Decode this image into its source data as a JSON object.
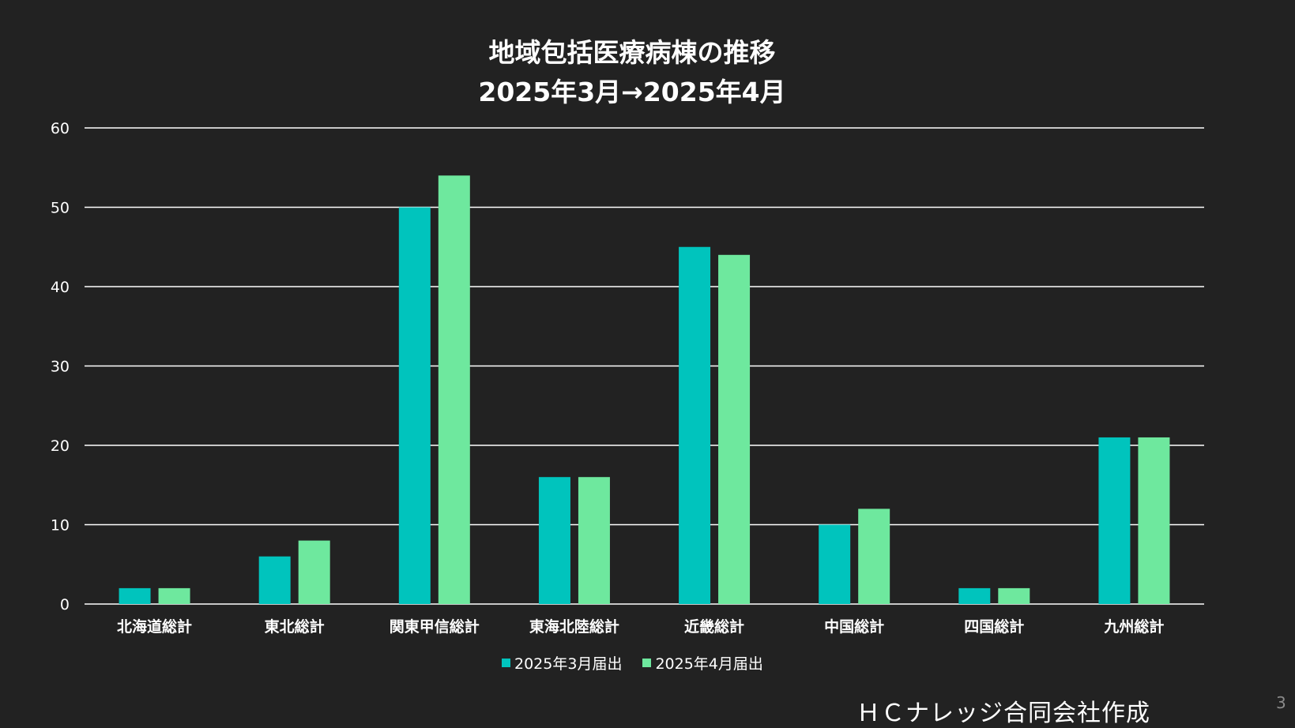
{
  "chart_data": {
    "type": "bar",
    "title": "地域包括医療病棟の推移",
    "subtitle": "2025年3月→2025年4月",
    "categories": [
      "北海道総計",
      "東北総計",
      "関東甲信総計",
      "東海北陸総計",
      "近畿総計",
      "中国総計",
      "四国総計",
      "九州総計"
    ],
    "series": [
      {
        "name": "2025年3月届出",
        "color": "#00c4bd",
        "values": [
          2,
          6,
          50,
          16,
          45,
          10,
          2,
          21
        ]
      },
      {
        "name": "2025年4月届出",
        "color": "#6ee89e",
        "values": [
          2,
          8,
          54,
          16,
          44,
          12,
          2,
          21
        ]
      }
    ],
    "ylim": [
      0,
      60
    ],
    "yticks": [
      0,
      10,
      20,
      30,
      40,
      50,
      60
    ],
    "xlabel": "",
    "ylabel": "",
    "grid": true,
    "legend": "bottom"
  },
  "footer": {
    "credit": "ＨＣナレッジ合同会社作成",
    "page_number": "3"
  },
  "colors": {
    "background": "#222222",
    "gridline": "#ffffff",
    "text": "#ffffff"
  }
}
